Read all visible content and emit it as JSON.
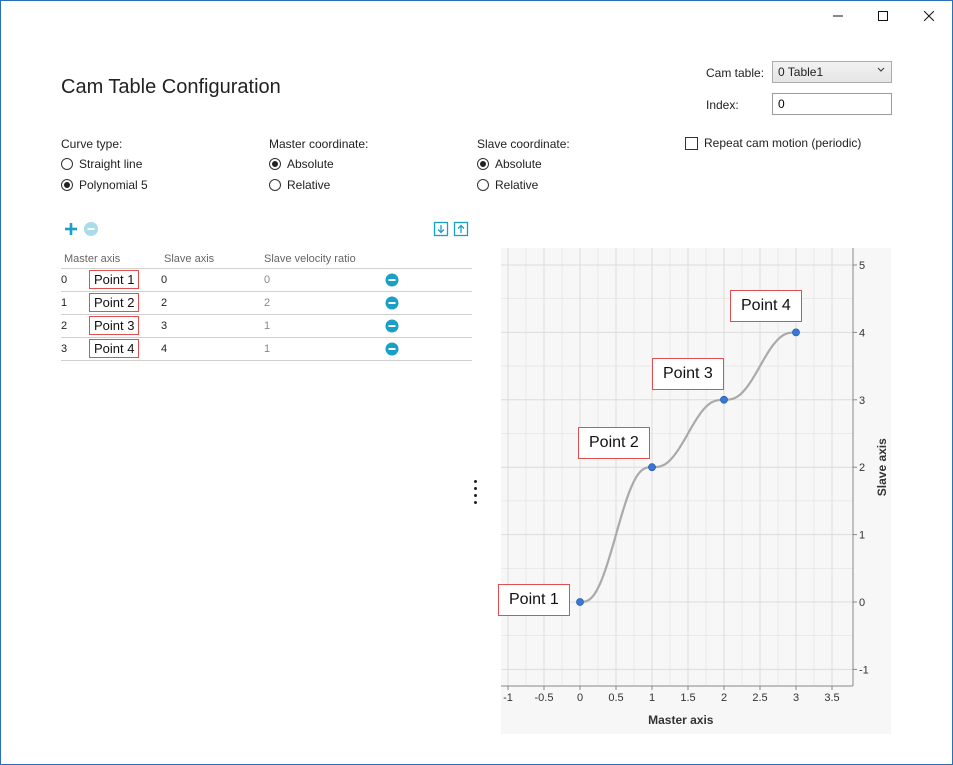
{
  "window": {
    "minimize_icon": "minimize-icon",
    "maximize_icon": "maximize-icon",
    "close_icon": "close-icon"
  },
  "page": {
    "title": "Cam Table Configuration"
  },
  "cam_table": {
    "label": "Cam table:",
    "selected": "0 Table1",
    "index_label": "Index:",
    "index_value": "0"
  },
  "curve_type": {
    "label": "Curve type:",
    "options": [
      "Straight line",
      "Polynomial 5"
    ],
    "selected": "Polynomial 5"
  },
  "master_coordinate": {
    "label": "Master coordinate:",
    "options": [
      "Absolute",
      "Relative"
    ],
    "selected": "Absolute"
  },
  "slave_coordinate": {
    "label": "Slave coordinate:",
    "options": [
      "Absolute",
      "Relative"
    ],
    "selected": "Absolute"
  },
  "repeat": {
    "label": "Repeat cam motion (periodic)",
    "checked": false
  },
  "toolbar": {
    "add_icon": "plus-icon",
    "remove_icon": "minus-circle-icon",
    "import_icon": "import-icon",
    "export_icon": "export-icon"
  },
  "table": {
    "headers": [
      "Master axis",
      "Slave axis",
      "Slave velocity ratio"
    ],
    "rows": [
      {
        "index": "0",
        "name": "Point 1",
        "slave": "0",
        "velocity": "0"
      },
      {
        "index": "1",
        "name": "Point 2",
        "slave": "2",
        "velocity": "2"
      },
      {
        "index": "2",
        "name": "Point 3",
        "slave": "3",
        "velocity": "1"
      },
      {
        "index": "3",
        "name": "Point 4",
        "slave": "4",
        "velocity": "1"
      }
    ]
  },
  "colors": {
    "accent": "#1a9fc7",
    "point": "#3a78d8",
    "label_border": "#e05050",
    "curve": "#aaaaaa",
    "plot_bg": "#f7f7f7",
    "grid": "#dcdcdc"
  },
  "chart_data": {
    "type": "line",
    "xlabel": "Master axis",
    "ylabel": "Slave axis",
    "xlim": [
      -1,
      3.5
    ],
    "ylim": [
      -1,
      5
    ],
    "xticks": [
      "-1",
      "-0.5",
      "0",
      "0.5",
      "1",
      "1.5",
      "2",
      "2.5",
      "3",
      "3.5"
    ],
    "yticks": [
      "-1",
      "0",
      "1",
      "2",
      "3",
      "4",
      "5"
    ],
    "grid": true,
    "y_axis_side": "right",
    "points": [
      {
        "x": 0,
        "y": 0,
        "label": "Point 1"
      },
      {
        "x": 1,
        "y": 2,
        "label": "Point 2"
      },
      {
        "x": 2,
        "y": 3,
        "label": "Point 3"
      },
      {
        "x": 3,
        "y": 4,
        "label": "Point 4"
      }
    ],
    "interpolation": "Polynomial 5"
  }
}
